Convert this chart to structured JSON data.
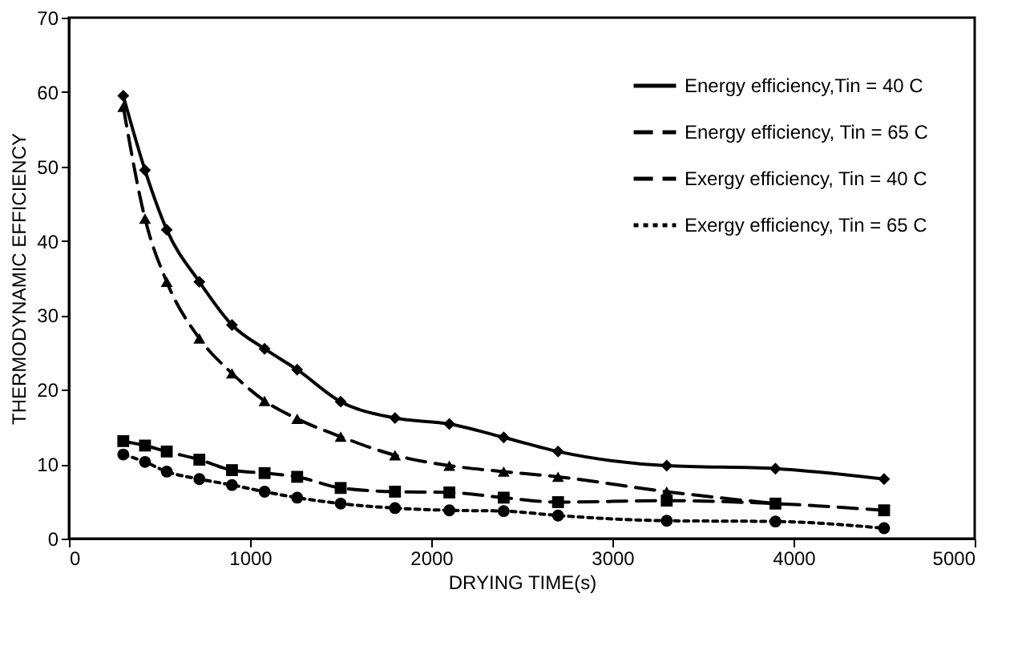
{
  "chart_data": {
    "type": "line",
    "xlabel": "DRYING TIME(s)",
    "ylabel": "THERMODYNAMIC EFFICIENCY",
    "x": [
      300,
      420,
      540,
      720,
      900,
      1080,
      1260,
      1500,
      1800,
      2100,
      2400,
      2700,
      3300,
      3900,
      4500
    ],
    "series": [
      {
        "name": "Energy efficiency,Tin = 40 C",
        "color": "#000000",
        "marker": "diamond",
        "line_style": "solid",
        "values": [
          59.5,
          49.5,
          41.5,
          34.5,
          28.7,
          25.5,
          22.7,
          18.4,
          16.2,
          15.4,
          13.6,
          11.7,
          9.8,
          9.4,
          8.0
        ]
      },
      {
        "name": "Energy efficiency, Tin = 65 C",
        "color": "#000000",
        "marker": "triangle",
        "line_style": "dashed",
        "values": [
          58,
          43,
          34.5,
          26.9,
          22.2,
          18.5,
          16.1,
          13.7,
          11.2,
          9.8,
          9.0,
          8.3,
          6.3,
          4.7,
          null
        ]
      },
      {
        "name": "Exergy efficiency, Tin = 40 C",
        "color": "#000000",
        "marker": "square",
        "line_style": "dashed",
        "values": [
          13.1,
          12.5,
          11.7,
          10.6,
          9.2,
          8.8,
          8.3,
          6.8,
          6.3,
          6.2,
          5.5,
          4.9,
          5.1,
          4.7,
          3.8
        ]
      },
      {
        "name": "Exergy efficiency, Tin = 65 C",
        "color": "#000000",
        "marker": "circle",
        "line_style": "dotted",
        "values": [
          11.3,
          10.3,
          9.0,
          8.0,
          7.2,
          6.3,
          5.5,
          4.7,
          4.1,
          3.8,
          3.7,
          3.1,
          2.4,
          2.3,
          1.4
        ]
      }
    ],
    "xlim": [
      0,
      5000
    ],
    "xticks": [
      0,
      1000,
      2000,
      3000,
      4000,
      5000
    ],
    "ylim": [
      0,
      70
    ],
    "yticks": [
      0,
      10,
      20,
      30,
      40,
      50,
      60,
      70
    ],
    "grid": false,
    "legend": "top right"
  }
}
